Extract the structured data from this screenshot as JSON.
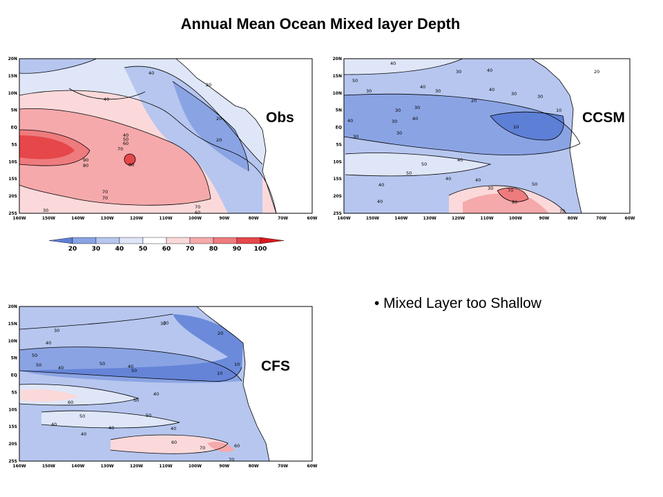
{
  "title": "Annual Mean Ocean Mixed layer Depth",
  "bullet": "• Mixed Layer too Shallow",
  "panels": [
    {
      "label": "Obs",
      "contours": [
        "40",
        "40",
        "20",
        "20",
        "20",
        "70",
        "90",
        "80",
        "40",
        "50",
        "60",
        "70",
        "80",
        "70",
        "60",
        "70",
        "30"
      ]
    },
    {
      "label": "CCSM",
      "contours": [
        "40",
        "30",
        "40",
        "50",
        "30",
        "30",
        "40",
        "30",
        "40",
        "30",
        "20",
        "30",
        "10",
        "10",
        "30",
        "40",
        "30",
        "40",
        "30",
        "40",
        "50",
        "40",
        "40",
        "40",
        "30",
        "50",
        "70",
        "80",
        "70",
        "40",
        "50",
        "30",
        "20"
      ]
    },
    {
      "label": "CFS",
      "contours": [
        "30",
        "30",
        "40",
        "50",
        "50",
        "40",
        "50",
        "40",
        "50",
        "60",
        "40",
        "50",
        "50",
        "40",
        "40",
        "50",
        "40",
        "20",
        "10",
        "10",
        "60",
        "60",
        "70",
        "70",
        "40",
        "30"
      ]
    }
  ],
  "axes": {
    "lat": [
      "20N",
      "15N",
      "10N",
      "5N",
      "EQ",
      "5S",
      "10S",
      "15S",
      "20S",
      "25S"
    ],
    "lon": [
      "160W",
      "150W",
      "140W",
      "130W",
      "120W",
      "110W",
      "100W",
      "90W",
      "80W",
      "70W",
      "60W"
    ]
  },
  "colorbar": {
    "ticks": [
      "20",
      "30",
      "40",
      "50",
      "60",
      "70",
      "80",
      "90",
      "100"
    ],
    "colors": [
      "#5e7fd6",
      "#8aa3e3",
      "#b6c6ef",
      "#dfe6f8",
      "#ffffff",
      "#fbd9da",
      "#f5a9ab",
      "#ee7b7d",
      "#e5474a",
      "#d9181c"
    ]
  }
}
